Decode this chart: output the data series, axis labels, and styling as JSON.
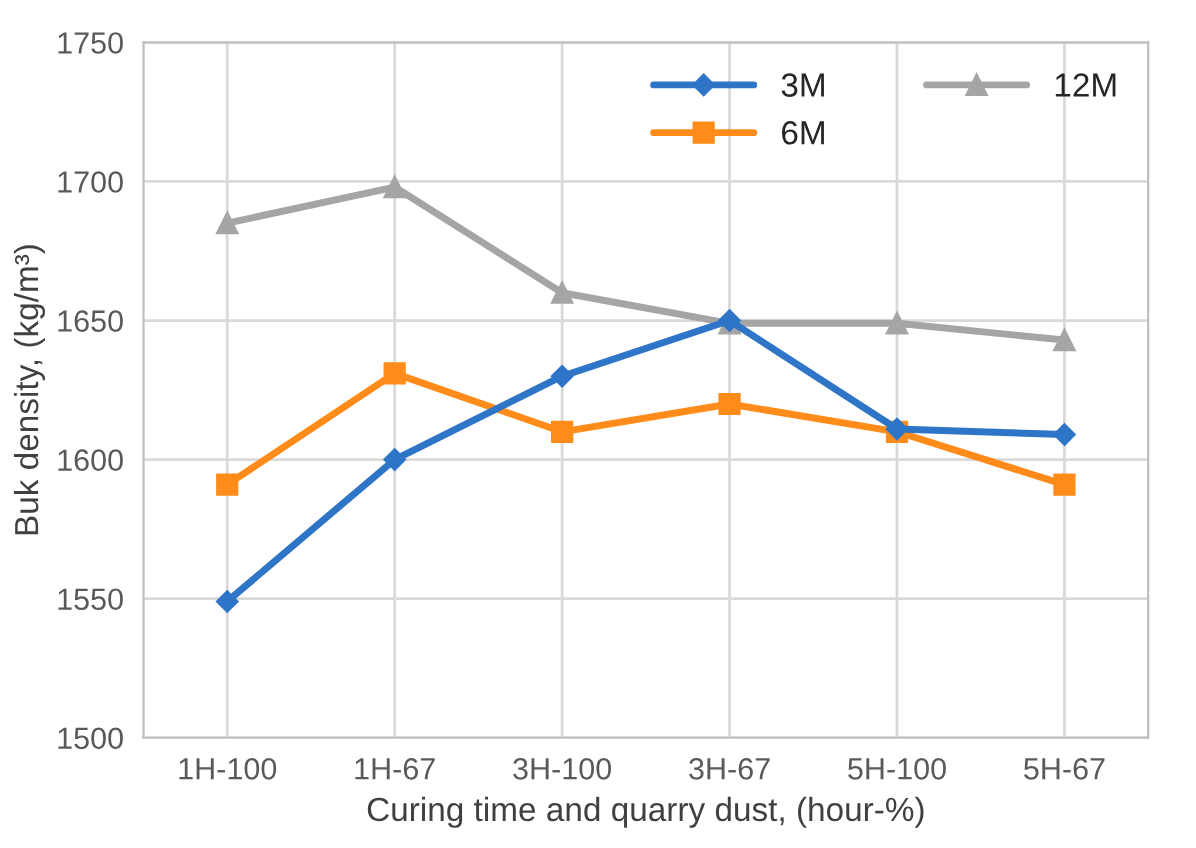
{
  "chart_data": {
    "type": "line",
    "xlabel": "Curing time and quarry dust, (hour-%)",
    "ylabel": "Buk density, (kg/m³)",
    "categories": [
      "1H-100",
      "1H-67",
      "3H-100",
      "3H-67",
      "5H-100",
      "5H-67"
    ],
    "series": [
      {
        "name": "3M",
        "color": "#2e75c8",
        "marker": "diamond",
        "values": [
          1549,
          1600,
          1630,
          1650,
          1611,
          1609
        ]
      },
      {
        "name": "6M",
        "color": "#ff8c1a",
        "marker": "square",
        "values": [
          1591,
          1631,
          1610,
          1620,
          1610,
          1591
        ]
      },
      {
        "name": "12M",
        "color": "#a5a5a5",
        "marker": "triangle",
        "values": [
          1685,
          1698,
          1660,
          1649,
          1649,
          1643
        ]
      }
    ],
    "ylim": [
      1500,
      1750
    ],
    "yticks": [
      1500,
      1550,
      1600,
      1650,
      1700,
      1750
    ],
    "grid": true,
    "legend": "top right",
    "line_style": "solid"
  }
}
